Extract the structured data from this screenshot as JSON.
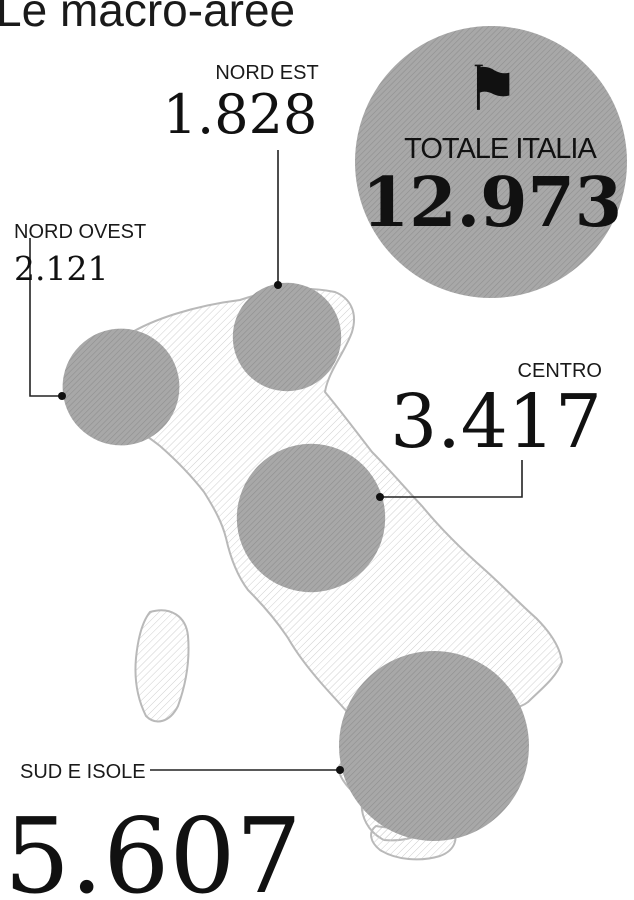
{
  "title": "Le macro-aree",
  "map_icon": "italy-silhouette-icon",
  "colors": {
    "bubble": "#a3a3a3",
    "bubble_dark": "#8a8a8a",
    "map_outline": "#b9b9b9",
    "text": "#1a1a1a",
    "leader": "#222222",
    "background": "#ffffff"
  },
  "total": {
    "label": "TOTALE ITALIA",
    "value": 12973,
    "value_text": "12.973"
  },
  "chart_data": {
    "type": "bubble-map",
    "title": "Le macro-aree",
    "total": {
      "label": "TOTALE ITALIA",
      "value": 12973
    },
    "regions": [
      {
        "name": "NORD EST",
        "value": 1828,
        "value_text": "1.828"
      },
      {
        "name": "NORD OVEST",
        "value": 2121,
        "value_text": "2.121"
      },
      {
        "name": "CENTRO",
        "value": 3417,
        "value_text": "3.417"
      },
      {
        "name": "SUD E ISOLE",
        "value": 5607,
        "value_text": "5.607"
      }
    ]
  }
}
